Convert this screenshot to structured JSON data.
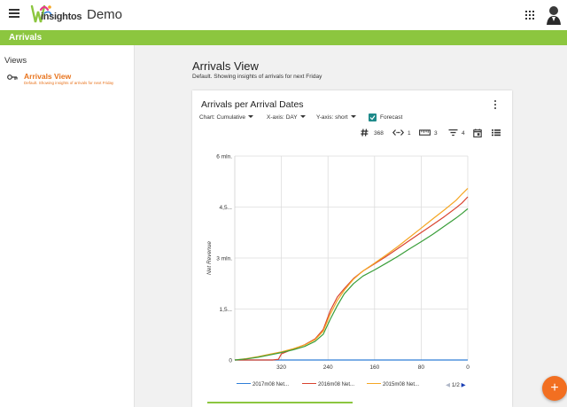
{
  "header": {
    "app_name": "Demo",
    "logo_word": "insightos",
    "section": "Arrivals"
  },
  "sidebar": {
    "heading": "Views",
    "items": [
      {
        "label": "Arrivals View",
        "description": "Default. Showing insights of arrivals for next Friday"
      }
    ]
  },
  "main": {
    "title": "Arrivals View",
    "subtitle": "Default. Showing insights of arrivals for next Friday"
  },
  "card": {
    "title": "Arrivals per Arrival Dates",
    "chart_label": "Chart:",
    "chart_value": "Cumulative",
    "xaxis_label": "X-axis:",
    "xaxis_value": "DAY",
    "yaxis_label": "Y-axis:",
    "yaxis_value": "short",
    "forecast_label": "Forecast",
    "stats": {
      "count": "368",
      "width": "1",
      "size": "3",
      "filters": "4"
    },
    "pager": "1/2"
  },
  "colors": {
    "green": "#8cc63f",
    "orange": "#f26f21",
    "teal": "#1e8a8a"
  },
  "chart_data": {
    "type": "line",
    "ylabel": "Net Revenue",
    "yticks": [
      "0",
      "1,5...",
      "3 mln.",
      "4,5...",
      "6 mln."
    ],
    "ylim": [
      0,
      6000000
    ],
    "xticks": [
      "320",
      "240",
      "160",
      "80",
      "0"
    ],
    "xlim": [
      400,
      0
    ],
    "series": [
      {
        "name": "2017m08 Net...",
        "color": "#2f7ed8",
        "x": [
          400,
          380,
          360,
          330,
          300,
          270,
          250,
          230,
          210,
          190,
          170,
          150,
          130,
          110,
          90,
          70,
          50,
          30,
          10,
          0
        ],
        "values": [
          0,
          0,
          0,
          0,
          0,
          0,
          0,
          0,
          0,
          0,
          0,
          0,
          0,
          0,
          0,
          0,
          0,
          0,
          0,
          0
        ]
      },
      {
        "name": "2016m08 Net...",
        "color": "#d9432f",
        "x": [
          400,
          380,
          360,
          345,
          335,
          325,
          320,
          300,
          280,
          262,
          248,
          236,
          224,
          212,
          196,
          180,
          160,
          140,
          120,
          100,
          80,
          60,
          40,
          20,
          10,
          0
        ],
        "values": [
          0,
          0,
          0,
          0,
          0,
          20000,
          180000,
          320000,
          450000,
          620000,
          900000,
          1450000,
          1850000,
          2100000,
          2400000,
          2620000,
          2830000,
          3050000,
          3280000,
          3520000,
          3750000,
          3980000,
          4220000,
          4480000,
          4620000,
          4800000
        ]
      },
      {
        "name": "2015m08 Net...",
        "color": "#f5a623",
        "x": [
          400,
          380,
          360,
          340,
          320,
          300,
          280,
          262,
          248,
          236,
          224,
          212,
          196,
          180,
          160,
          140,
          120,
          100,
          80,
          60,
          40,
          20,
          10,
          0
        ],
        "values": [
          0,
          40000,
          100000,
          170000,
          240000,
          330000,
          440000,
          600000,
          850000,
          1350000,
          1750000,
          2050000,
          2380000,
          2620000,
          2850000,
          3090000,
          3340000,
          3610000,
          3880000,
          4150000,
          4420000,
          4700000,
          4880000,
          5050000
        ]
      },
      {
        "name": "",
        "color": "#3a9e3a",
        "x": [
          400,
          380,
          360,
          340,
          320,
          300,
          280,
          262,
          248,
          236,
          224,
          212,
          196,
          180,
          160,
          140,
          120,
          100,
          80,
          60,
          40,
          20,
          10,
          0
        ],
        "values": [
          0,
          30000,
          80000,
          150000,
          220000,
          300000,
          400000,
          550000,
          760000,
          1200000,
          1600000,
          1950000,
          2250000,
          2470000,
          2650000,
          2850000,
          3050000,
          3270000,
          3480000,
          3700000,
          3940000,
          4180000,
          4310000,
          4450000
        ]
      }
    ]
  }
}
